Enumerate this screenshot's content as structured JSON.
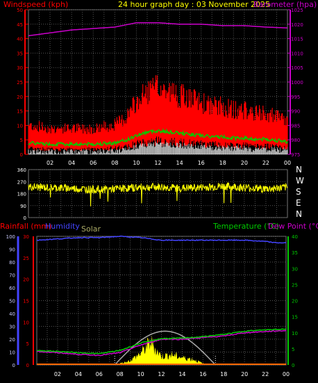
{
  "header": {
    "windspeed_label": "Windspeed (kph)",
    "title": "24 hour graph day : 03 November 2025",
    "barometer_label": "Barometer (hpa)"
  },
  "bottom_labels": {
    "rainfall": "Rainfall (mm)",
    "humidity": "Humidity",
    "solar": "Solar",
    "temperature": "Temperature (°C)",
    "dewpoint": "Dew Point (°C)"
  },
  "compass": [
    "N",
    "W",
    "S",
    "E",
    "N"
  ],
  "colors": {
    "wind": "#ff0000",
    "gust": "#ff0000",
    "barometer": "#cc00cc",
    "avg_wind": "#00cc00",
    "calm": "#ffffff",
    "direction": "#ffff00",
    "humidity": "#4444ff",
    "temperature": "#00cc00",
    "dewpoint": "#cc00cc",
    "solar": "#ffff00",
    "solar_max": "#aaaaaa",
    "title": "#ffff00",
    "rain_axis": "#ff0000"
  },
  "chart_data": [
    {
      "type": "line",
      "name": "wind-barometer",
      "x_ticks": [
        "02",
        "04",
        "06",
        "08",
        "10",
        "12",
        "14",
        "16",
        "18",
        "20",
        "22",
        "00"
      ],
      "y_left_ticks": [
        0,
        5,
        10,
        15,
        20,
        25,
        30,
        35,
        40,
        45,
        50
      ],
      "y_right_ticks": [
        975,
        980,
        985,
        990,
        995,
        1000,
        1005,
        1010,
        1015,
        1020,
        1025
      ],
      "xlim_hours": [
        0,
        24
      ],
      "ylim_left": [
        0,
        50
      ],
      "ylim_right": [
        975,
        1025
      ],
      "series": [
        {
          "name": "Windspeed (kph)",
          "axis": "left",
          "x": [
            0,
            2,
            4,
            6,
            8,
            9,
            10,
            11,
            12,
            13,
            14,
            15,
            16,
            17,
            18,
            19,
            20,
            21,
            22,
            23,
            24
          ],
          "values": [
            8,
            7,
            7,
            7,
            8,
            10,
            14,
            17,
            18,
            17,
            16,
            15,
            14,
            13,
            13,
            12,
            12,
            11,
            11,
            10,
            9
          ]
        },
        {
          "name": "Barometer (hpa)",
          "axis": "right",
          "x": [
            0,
            2,
            4,
            6,
            8,
            10,
            12,
            14,
            16,
            18,
            20,
            22,
            24
          ],
          "values": [
            1016,
            1017,
            1018,
            1018.5,
            1019,
            1020.5,
            1020.5,
            1020,
            1020,
            1019.5,
            1019.5,
            1019,
            1018.7
          ]
        }
      ]
    },
    {
      "type": "line",
      "name": "wind-direction",
      "y_ticks": [
        360,
        270,
        180,
        90,
        0
      ],
      "ylim": [
        0,
        360
      ],
      "series": [
        {
          "name": "direction",
          "x": [
            0,
            2,
            4,
            6,
            8,
            10,
            12,
            14,
            16,
            18,
            20,
            22,
            24
          ],
          "values": [
            230,
            225,
            220,
            210,
            215,
            225,
            230,
            220,
            225,
            235,
            225,
            215,
            225
          ]
        }
      ]
    },
    {
      "type": "line",
      "name": "temp-humidity-solar",
      "x_ticks": [
        "02",
        "04",
        "06",
        "08",
        "10",
        "12",
        "14",
        "16",
        "18",
        "20",
        "22",
        "00"
      ],
      "y_left_ticks": [
        0,
        5,
        10,
        15,
        20,
        25,
        30
      ],
      "y_humidity_ticks": [
        0,
        10,
        20,
        30,
        40,
        50,
        60,
        70,
        80,
        90,
        100
      ],
      "y_right_ticks": [
        0,
        5,
        10,
        15,
        20,
        25,
        30,
        35,
        40
      ],
      "ylim_left": [
        0,
        30
      ],
      "ylim_humidity": [
        0,
        100
      ],
      "ylim_right": [
        0,
        40
      ],
      "series": [
        {
          "name": "Humidity",
          "axis": "humidity",
          "x": [
            0,
            2,
            4,
            6,
            8,
            10,
            12,
            14,
            16,
            18,
            20,
            22,
            23,
            24
          ],
          "values": [
            97,
            98,
            99,
            99,
            100,
            99,
            97,
            97,
            97,
            97,
            97,
            96,
            95,
            95
          ]
        },
        {
          "name": "Temperature (°C)",
          "axis": "right",
          "x": [
            0,
            2,
            4,
            6,
            8,
            10,
            12,
            14,
            16,
            18,
            20,
            22,
            24
          ],
          "values": [
            4.5,
            4.2,
            3.8,
            3.5,
            4.5,
            6.8,
            8.2,
            8.3,
            8.8,
            9.5,
            10.5,
            10.9,
            11.2
          ]
        },
        {
          "name": "Dew Point (°C)",
          "axis": "right",
          "x": [
            0,
            2,
            4,
            6,
            8,
            10,
            12,
            14,
            16,
            18,
            20,
            22,
            24
          ],
          "values": [
            4.2,
            3.8,
            3.3,
            3.0,
            3.8,
            6.2,
            8.0,
            8.0,
            8.5,
            9.0,
            10.0,
            10.4,
            10.7
          ]
        },
        {
          "name": "Solar",
          "axis": "right",
          "x": [
            7.5,
            8,
            9,
            10,
            10.5,
            11,
            11.5,
            12,
            13,
            14,
            15,
            16,
            16.5
          ],
          "values": [
            0,
            0.5,
            1.5,
            4,
            6,
            8,
            5,
            3,
            3.5,
            2.5,
            2,
            0.5,
            0
          ]
        }
      ]
    }
  ]
}
